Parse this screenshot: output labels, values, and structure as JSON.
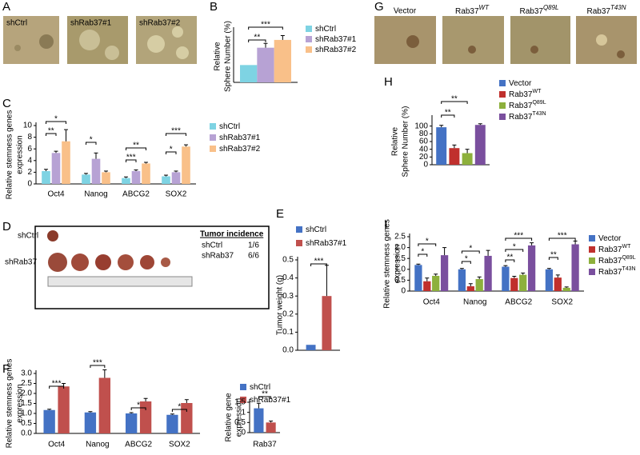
{
  "panel_labels": [
    "A",
    "B",
    "C",
    "D",
    "E",
    "F",
    "G",
    "H",
    "I"
  ],
  "images": {
    "A": [
      "shCtrl",
      "shRab37#1",
      "shRab37#2"
    ],
    "G": [
      {
        "text": "Vector"
      },
      {
        "text": "Rab37",
        "sup": "WT"
      },
      {
        "text": "Rab37",
        "sup": "Q89L"
      },
      {
        "text": "Rab37",
        "sup": "T43N"
      }
    ],
    "D": {
      "rows": [
        "shCtrl",
        "shRab37"
      ],
      "table_title": "Tumor incidence",
      "table": [
        [
          "shCtrl",
          "1/6"
        ],
        [
          "shRab37",
          "6/6"
        ]
      ]
    }
  },
  "chart_data": [
    {
      "type": "bar",
      "y_label": [
        "Relative",
        "Sphere Number (%)"
      ],
      "categories": [
        null
      ],
      "series": [
        {
          "name": "shCtrl",
          "color": "#7ed3e3",
          "values": [
            100
          ]
        },
        {
          "name": "shRab37#1",
          "color": "#b7a2d4",
          "values": [
            200
          ],
          "errors": [
            25
          ]
        },
        {
          "name": "shRab37#2",
          "color": "#f9c089",
          "values": [
            245
          ],
          "errors": [
            25
          ]
        }
      ],
      "ylim": [
        0,
        300
      ],
      "annotations": [
        "**",
        "***"
      ]
    },
    {
      "type": "bar",
      "y_label": [
        "Relative stemness genes",
        "expression"
      ],
      "categories": [
        "Oct4",
        "Nanog",
        "ABCG2",
        "SOX2"
      ],
      "series": [
        {
          "name": "shCtrl",
          "color": "#7ed3e3",
          "values": [
            2.2,
            1.6,
            1.0,
            1.3
          ],
          "errors": [
            0.3,
            0.2,
            0.2,
            0.2
          ]
        },
        {
          "name": "shRab37#1",
          "color": "#b7a2d4",
          "values": [
            5.3,
            4.3,
            2.2,
            2.0
          ],
          "errors": [
            0.3,
            1.0,
            0.2,
            0.2
          ]
        },
        {
          "name": "shRab37#2",
          "color": "#f9c089",
          "values": [
            7.3,
            2.0,
            3.5,
            6.4
          ],
          "errors": [
            2.0,
            0.2,
            0.2,
            0.3
          ]
        }
      ],
      "ylim": [
        0,
        10
      ],
      "yticks": [
        0,
        2,
        4,
        6,
        8,
        10
      ],
      "annotations": [
        "**",
        "*",
        "*",
        "***",
        "**",
        "*",
        "***"
      ]
    },
    {
      "type": "bar",
      "y_label": [
        "Tumor weight (g)"
      ],
      "categories": [
        null
      ],
      "series": [
        {
          "name": "shCtrl",
          "color": "#4472c4",
          "values": [
            0.03
          ]
        },
        {
          "name": "shRab37#1",
          "color": "#c0504d",
          "values": [
            0.3
          ],
          "errors": [
            0.17
          ]
        }
      ],
      "ylim": [
        0,
        0.5
      ],
      "yticks": [
        {
          "value": 0,
          "label": "0.0"
        },
        0.1,
        0.2,
        0.3,
        0.4,
        0.5
      ],
      "annotations": [
        "***"
      ]
    },
    {
      "type": "bar",
      "y_label": [
        "Relative stemness genes",
        "expression"
      ],
      "categories": [
        "Oct4",
        "Nanog",
        "ABCG2",
        "SOX2"
      ],
      "series": [
        {
          "name": "shCtrl",
          "color": "#4472c4",
          "values": [
            1.17,
            1.05,
            1.0,
            0.93
          ],
          "errors": [
            0.04,
            0.04,
            0.04,
            0.04
          ]
        },
        {
          "name": "shRab37#1",
          "color": "#c0504d",
          "values": [
            2.35,
            2.78,
            1.6,
            1.52
          ],
          "errors": [
            0.15,
            0.4,
            0.15,
            0.17
          ]
        }
      ],
      "ylim": [
        0,
        3
      ],
      "yticks": [
        {
          "value": 0,
          "label": "0.0"
        },
        0.5,
        {
          "value": 1,
          "label": "1.0"
        },
        1.5,
        {
          "value": 2,
          "label": "2.0"
        },
        2.5,
        {
          "value": 3,
          "label": "3.0"
        }
      ],
      "annotations": [
        "***",
        "***",
        "*",
        "*"
      ]
    },
    {
      "type": "bar",
      "y_label": [
        "Relative gene",
        "expression"
      ],
      "categories": [
        "Rab37"
      ],
      "series": [
        {
          "color": "#4472c4",
          "values": [
            1.2
          ],
          "errors": [
            0.25
          ]
        },
        {
          "color": "#c0504d",
          "values": [
            0.5
          ],
          "errors": [
            0.07
          ]
        }
      ],
      "ylim": [
        0,
        1.5
      ],
      "yticks": [
        0,
        0.5,
        1,
        1.5
      ],
      "annotations": [
        "**"
      ]
    },
    {
      "type": "bar",
      "y_label": [
        "Relative",
        "Sphere Number (%)"
      ],
      "categories": [
        null
      ],
      "series": [
        {
          "name": "Vector",
          "color": "#4472c4",
          "values": [
            97
          ],
          "errors": [
            5
          ]
        },
        {
          "name": "Rab37",
          "sup": "WT",
          "color": "#c0302d",
          "values": [
            43
          ],
          "errors": [
            8
          ]
        },
        {
          "name": "Rab37",
          "sup": "Q89L",
          "color": "#8db03c",
          "values": [
            30
          ],
          "errors": [
            10
          ]
        },
        {
          "name": "Rab37",
          "sup": "T43N",
          "color": "#7a4f9e",
          "values": [
            103
          ],
          "errors": [
            3
          ]
        }
      ],
      "ylim": [
        0,
        120
      ],
      "yticks": [
        0,
        20,
        40,
        60,
        80,
        100
      ],
      "annotations": [
        "**",
        "**"
      ]
    },
    {
      "type": "bar",
      "y_label": [
        "Relative stemness genes",
        "expression"
      ],
      "categories": [
        "Oct4",
        "Nanog",
        "ABCG2",
        "SOX2"
      ],
      "series": [
        {
          "name": "Vector",
          "color": "#4472c4",
          "values": [
            1.2,
            1.0,
            1.12,
            1.0
          ],
          "errors": [
            0.04,
            0.04,
            0.05,
            0.04
          ]
        },
        {
          "name": "Rab37",
          "sup": "WT",
          "color": "#c0302d",
          "values": [
            0.45,
            0.22,
            0.6,
            0.62
          ],
          "errors": [
            0.15,
            0.12,
            0.08,
            0.12
          ]
        },
        {
          "name": "Rab37",
          "sup": "Q89L",
          "color": "#8db03c",
          "values": [
            0.7,
            0.55,
            0.75,
            0.15
          ],
          "errors": [
            0.08,
            0.1,
            0.08,
            0.04
          ]
        },
        {
          "name": "Rab37",
          "sup": "T43N",
          "color": "#7a4f9e",
          "values": [
            1.65,
            1.62,
            2.1,
            2.15
          ],
          "errors": [
            0.35,
            0.25,
            0.12,
            0.15
          ]
        }
      ],
      "ylim": [
        0,
        2.5
      ],
      "yticks": [
        0,
        0.5,
        {
          "value": 1,
          "label": "1.0"
        },
        {
          "value": 1.5,
          "label": "1.5"
        },
        {
          "value": 2,
          "label": "2.0"
        },
        2.5
      ],
      "annotations": [
        "*",
        "*",
        "*",
        "*",
        "**",
        "*",
        "***",
        "**",
        "***"
      ]
    }
  ]
}
